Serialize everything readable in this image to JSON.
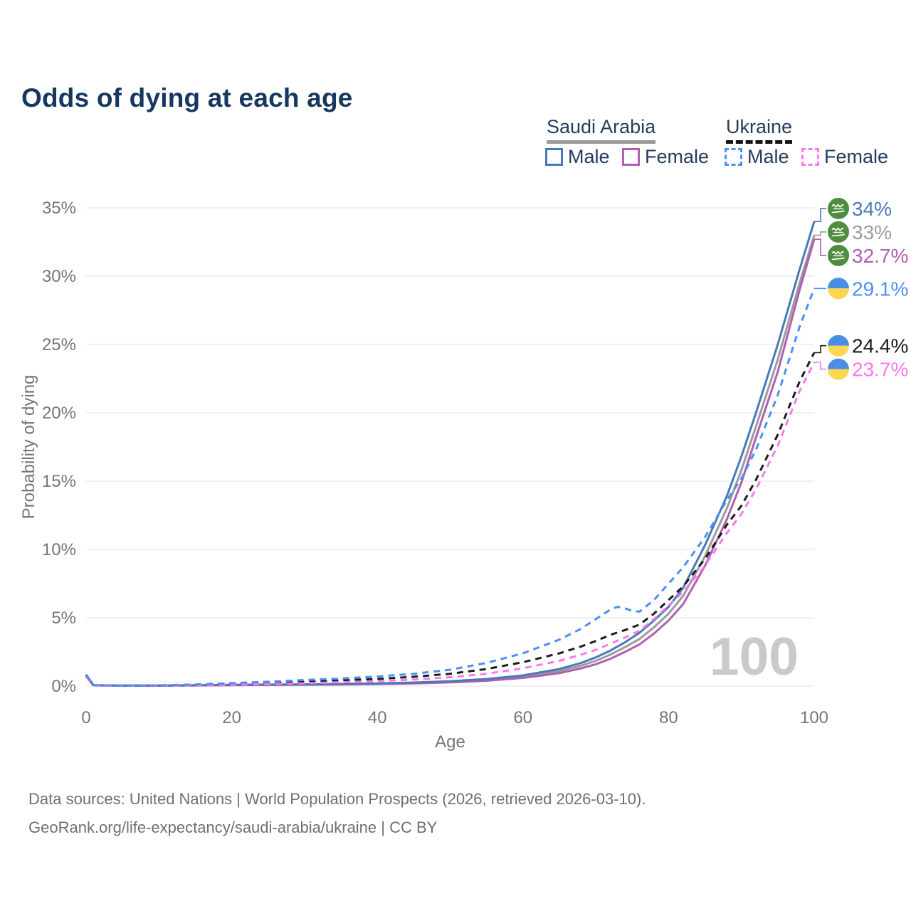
{
  "title": "Odds of dying at each age",
  "legend": {
    "groups": [
      {
        "name": "Saudi Arabia",
        "line_style": "solid",
        "underline_color": "#9a9a9a",
        "items": [
          {
            "label": "Male",
            "color": "#4b79b7",
            "dash": false
          },
          {
            "label": "Female",
            "color": "#b05fb1",
            "dash": false
          }
        ]
      },
      {
        "name": "Ukraine",
        "line_style": "dashed",
        "underline_color": "#141414",
        "items": [
          {
            "label": "Male",
            "color": "#4d8ef7",
            "dash": true
          },
          {
            "label": "Female",
            "color": "#fb78ee",
            "dash": true
          }
        ]
      }
    ]
  },
  "watermark": "100",
  "footer": {
    "line1": "Data sources: United Nations | World Population Prospects (2026, retrieved 2026-03-10).",
    "line2": "GeoRank.org/life-expectancy/saudi-arabia/ukraine | CC BY"
  },
  "chart_data": {
    "type": "line",
    "title": "Odds of dying at each age",
    "xlabel": "Age",
    "ylabel": "Probability of dying",
    "xlim": [
      0,
      100
    ],
    "ylim": [
      0,
      35
    ],
    "x_ticks": [
      0,
      20,
      40,
      60,
      80,
      100
    ],
    "y_ticks": [
      0,
      5,
      10,
      15,
      20,
      25,
      30,
      35
    ],
    "y_tick_suffix": "%",
    "grid": true,
    "legend_position": "top-right",
    "series": [
      {
        "id": "saudi-arabia-all",
        "name": "Saudi Arabia (both sexes)",
        "country": "Saudi Arabia",
        "flag": "saudi-arabia",
        "color": "#9b9b9b",
        "dash": false,
        "end_label": "33%",
        "end_value": 33.0,
        "points": [
          [
            0,
            0.8
          ],
          [
            1,
            0.055
          ],
          [
            5,
            0.035
          ],
          [
            10,
            0.035
          ],
          [
            15,
            0.05
          ],
          [
            20,
            0.08
          ],
          [
            25,
            0.1
          ],
          [
            30,
            0.12
          ],
          [
            35,
            0.14
          ],
          [
            40,
            0.18
          ],
          [
            45,
            0.23
          ],
          [
            50,
            0.32
          ],
          [
            55,
            0.46
          ],
          [
            60,
            0.7
          ],
          [
            65,
            1.1
          ],
          [
            68,
            1.5
          ],
          [
            70,
            1.85
          ],
          [
            72,
            2.3
          ],
          [
            74,
            2.85
          ],
          [
            76,
            3.45
          ],
          [
            78,
            4.3
          ],
          [
            80,
            5.3
          ],
          [
            82,
            6.6
          ],
          [
            85,
            9.5
          ],
          [
            88,
            13.0
          ],
          [
            90,
            15.8
          ],
          [
            92,
            19.0
          ],
          [
            95,
            23.9
          ],
          [
            98,
            29.5
          ],
          [
            100,
            33.0
          ]
        ]
      },
      {
        "id": "saudi-arabia-female",
        "name": "Saudi Arabia Female",
        "country": "Saudi Arabia",
        "flag": "saudi-arabia",
        "color": "#b05fb1",
        "dash": false,
        "end_label": "32.7%",
        "end_value": 32.7,
        "points": [
          [
            0,
            0.75
          ],
          [
            1,
            0.05
          ],
          [
            5,
            0.03
          ],
          [
            10,
            0.03
          ],
          [
            15,
            0.045
          ],
          [
            20,
            0.07
          ],
          [
            25,
            0.085
          ],
          [
            30,
            0.1
          ],
          [
            35,
            0.12
          ],
          [
            40,
            0.15
          ],
          [
            45,
            0.2
          ],
          [
            50,
            0.27
          ],
          [
            55,
            0.39
          ],
          [
            60,
            0.6
          ],
          [
            65,
            0.95
          ],
          [
            68,
            1.3
          ],
          [
            70,
            1.6
          ],
          [
            72,
            2.0
          ],
          [
            74,
            2.5
          ],
          [
            76,
            3.05
          ],
          [
            78,
            3.85
          ],
          [
            80,
            4.8
          ],
          [
            82,
            6.0
          ],
          [
            85,
            8.8
          ],
          [
            88,
            12.2
          ],
          [
            90,
            14.9
          ],
          [
            92,
            18.2
          ],
          [
            95,
            23.0
          ],
          [
            98,
            29.0
          ],
          [
            100,
            32.7
          ]
        ]
      },
      {
        "id": "saudi-arabia-male",
        "name": "Saudi Arabia Male",
        "country": "Saudi Arabia",
        "flag": "saudi-arabia",
        "color": "#4b79b7",
        "dash": false,
        "end_label": "34%",
        "end_value": 34.0,
        "points": [
          [
            0,
            0.85
          ],
          [
            1,
            0.06
          ],
          [
            5,
            0.04
          ],
          [
            10,
            0.04
          ],
          [
            15,
            0.06
          ],
          [
            20,
            0.09
          ],
          [
            25,
            0.11
          ],
          [
            30,
            0.13
          ],
          [
            35,
            0.16
          ],
          [
            40,
            0.2
          ],
          [
            45,
            0.26
          ],
          [
            50,
            0.36
          ],
          [
            55,
            0.52
          ],
          [
            60,
            0.78
          ],
          [
            65,
            1.25
          ],
          [
            68,
            1.7
          ],
          [
            70,
            2.1
          ],
          [
            72,
            2.6
          ],
          [
            74,
            3.2
          ],
          [
            76,
            3.9
          ],
          [
            78,
            4.8
          ],
          [
            80,
            5.8
          ],
          [
            82,
            7.2
          ],
          [
            85,
            10.3
          ],
          [
            88,
            13.9
          ],
          [
            90,
            16.8
          ],
          [
            92,
            20.0
          ],
          [
            95,
            25.0
          ],
          [
            98,
            30.5
          ],
          [
            100,
            34.0
          ]
        ]
      },
      {
        "id": "ukraine-all",
        "name": "Ukraine (both sexes)",
        "country": "Ukraine",
        "flag": "ukraine",
        "color": "#1c1c1c",
        "dash": true,
        "end_label": "24.4%",
        "end_value": 24.4,
        "points": [
          [
            0,
            0.75
          ],
          [
            1,
            0.055
          ],
          [
            5,
            0.035
          ],
          [
            10,
            0.045
          ],
          [
            15,
            0.09
          ],
          [
            20,
            0.16
          ],
          [
            25,
            0.24
          ],
          [
            30,
            0.33
          ],
          [
            35,
            0.42
          ],
          [
            40,
            0.52
          ],
          [
            45,
            0.68
          ],
          [
            50,
            0.9
          ],
          [
            55,
            1.25
          ],
          [
            60,
            1.75
          ],
          [
            65,
            2.4
          ],
          [
            68,
            2.9
          ],
          [
            70,
            3.3
          ],
          [
            72,
            3.75
          ],
          [
            74,
            4.1
          ],
          [
            76,
            4.5
          ],
          [
            78,
            5.3
          ],
          [
            80,
            6.3
          ],
          [
            82,
            7.3
          ],
          [
            85,
            9.3
          ],
          [
            88,
            11.8
          ],
          [
            90,
            13.2
          ],
          [
            92,
            15.1
          ],
          [
            95,
            18.4
          ],
          [
            98,
            22.3
          ],
          [
            100,
            24.4
          ]
        ]
      },
      {
        "id": "ukraine-female",
        "name": "Ukraine Female",
        "country": "Ukraine",
        "flag": "ukraine",
        "color": "#fb78ee",
        "dash": true,
        "end_label": "23.7%",
        "end_value": 23.7,
        "points": [
          [
            0,
            0.7
          ],
          [
            1,
            0.05
          ],
          [
            5,
            0.03
          ],
          [
            10,
            0.04
          ],
          [
            15,
            0.06
          ],
          [
            20,
            0.1
          ],
          [
            25,
            0.15
          ],
          [
            30,
            0.21
          ],
          [
            35,
            0.28
          ],
          [
            40,
            0.36
          ],
          [
            45,
            0.48
          ],
          [
            50,
            0.65
          ],
          [
            55,
            0.9
          ],
          [
            60,
            1.3
          ],
          [
            65,
            1.85
          ],
          [
            68,
            2.3
          ],
          [
            70,
            2.65
          ],
          [
            72,
            3.1
          ],
          [
            74,
            3.55
          ],
          [
            76,
            4.05
          ],
          [
            78,
            4.9
          ],
          [
            80,
            5.9
          ],
          [
            82,
            6.9
          ],
          [
            85,
            8.8
          ],
          [
            88,
            11.2
          ],
          [
            90,
            12.6
          ],
          [
            92,
            14.4
          ],
          [
            95,
            17.6
          ],
          [
            98,
            21.6
          ],
          [
            100,
            23.7
          ]
        ]
      },
      {
        "id": "ukraine-male",
        "name": "Ukraine Male",
        "country": "Ukraine",
        "flag": "ukraine",
        "color": "#4d8ef7",
        "dash": true,
        "end_label": "29.1%",
        "end_value": 29.1,
        "points": [
          [
            0,
            0.8
          ],
          [
            1,
            0.06
          ],
          [
            5,
            0.04
          ],
          [
            10,
            0.05
          ],
          [
            15,
            0.12
          ],
          [
            20,
            0.22
          ],
          [
            25,
            0.32
          ],
          [
            30,
            0.45
          ],
          [
            35,
            0.55
          ],
          [
            40,
            0.7
          ],
          [
            45,
            0.9
          ],
          [
            50,
            1.2
          ],
          [
            55,
            1.7
          ],
          [
            60,
            2.4
          ],
          [
            65,
            3.4
          ],
          [
            68,
            4.2
          ],
          [
            70,
            4.9
          ],
          [
            72,
            5.6
          ],
          [
            73,
            5.8
          ],
          [
            74,
            5.7
          ],
          [
            75,
            5.5
          ],
          [
            76,
            5.45
          ],
          [
            78,
            6.3
          ],
          [
            80,
            7.5
          ],
          [
            82,
            8.7
          ],
          [
            85,
            10.9
          ],
          [
            88,
            13.6
          ],
          [
            90,
            15.2
          ],
          [
            92,
            17.3
          ],
          [
            95,
            21.3
          ],
          [
            98,
            26.3
          ],
          [
            100,
            29.1
          ]
        ]
      }
    ],
    "flag_colors": {
      "saudi_green": "#4e8c3f",
      "ukraine_blue": "#4a8ee3",
      "ukraine_yellow": "#f9d74e"
    }
  }
}
